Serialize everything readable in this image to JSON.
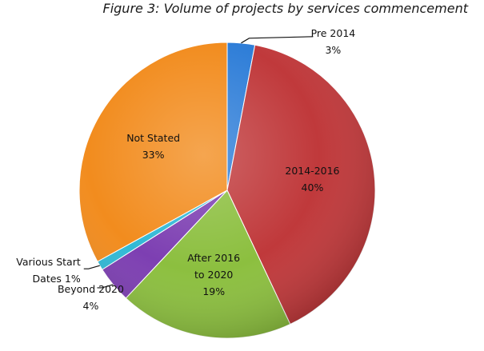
{
  "chart_data": {
    "type": "pie",
    "title": "Figure 3: Volume of projects by services commencement",
    "slices": [
      {
        "label": "Pre 2014",
        "value": 3,
        "display": "3%",
        "color": "#2f7ed8"
      },
      {
        "label": "2014-2016",
        "value": 40,
        "display": "40%",
        "color": "#c0393b"
      },
      {
        "label": "After 2016 to 2020",
        "value": 19,
        "display": "19%",
        "color": "#8cbf3f"
      },
      {
        "label": "Beyond 2020",
        "value": 4,
        "display": "4%",
        "color": "#7d3fb2"
      },
      {
        "label": "Various Start Dates 1%",
        "value": 1,
        "display": "",
        "color": "#31b9d6"
      },
      {
        "label": "Not Stated",
        "value": 33,
        "display": "33%",
        "color": "#f28c1e"
      }
    ]
  }
}
